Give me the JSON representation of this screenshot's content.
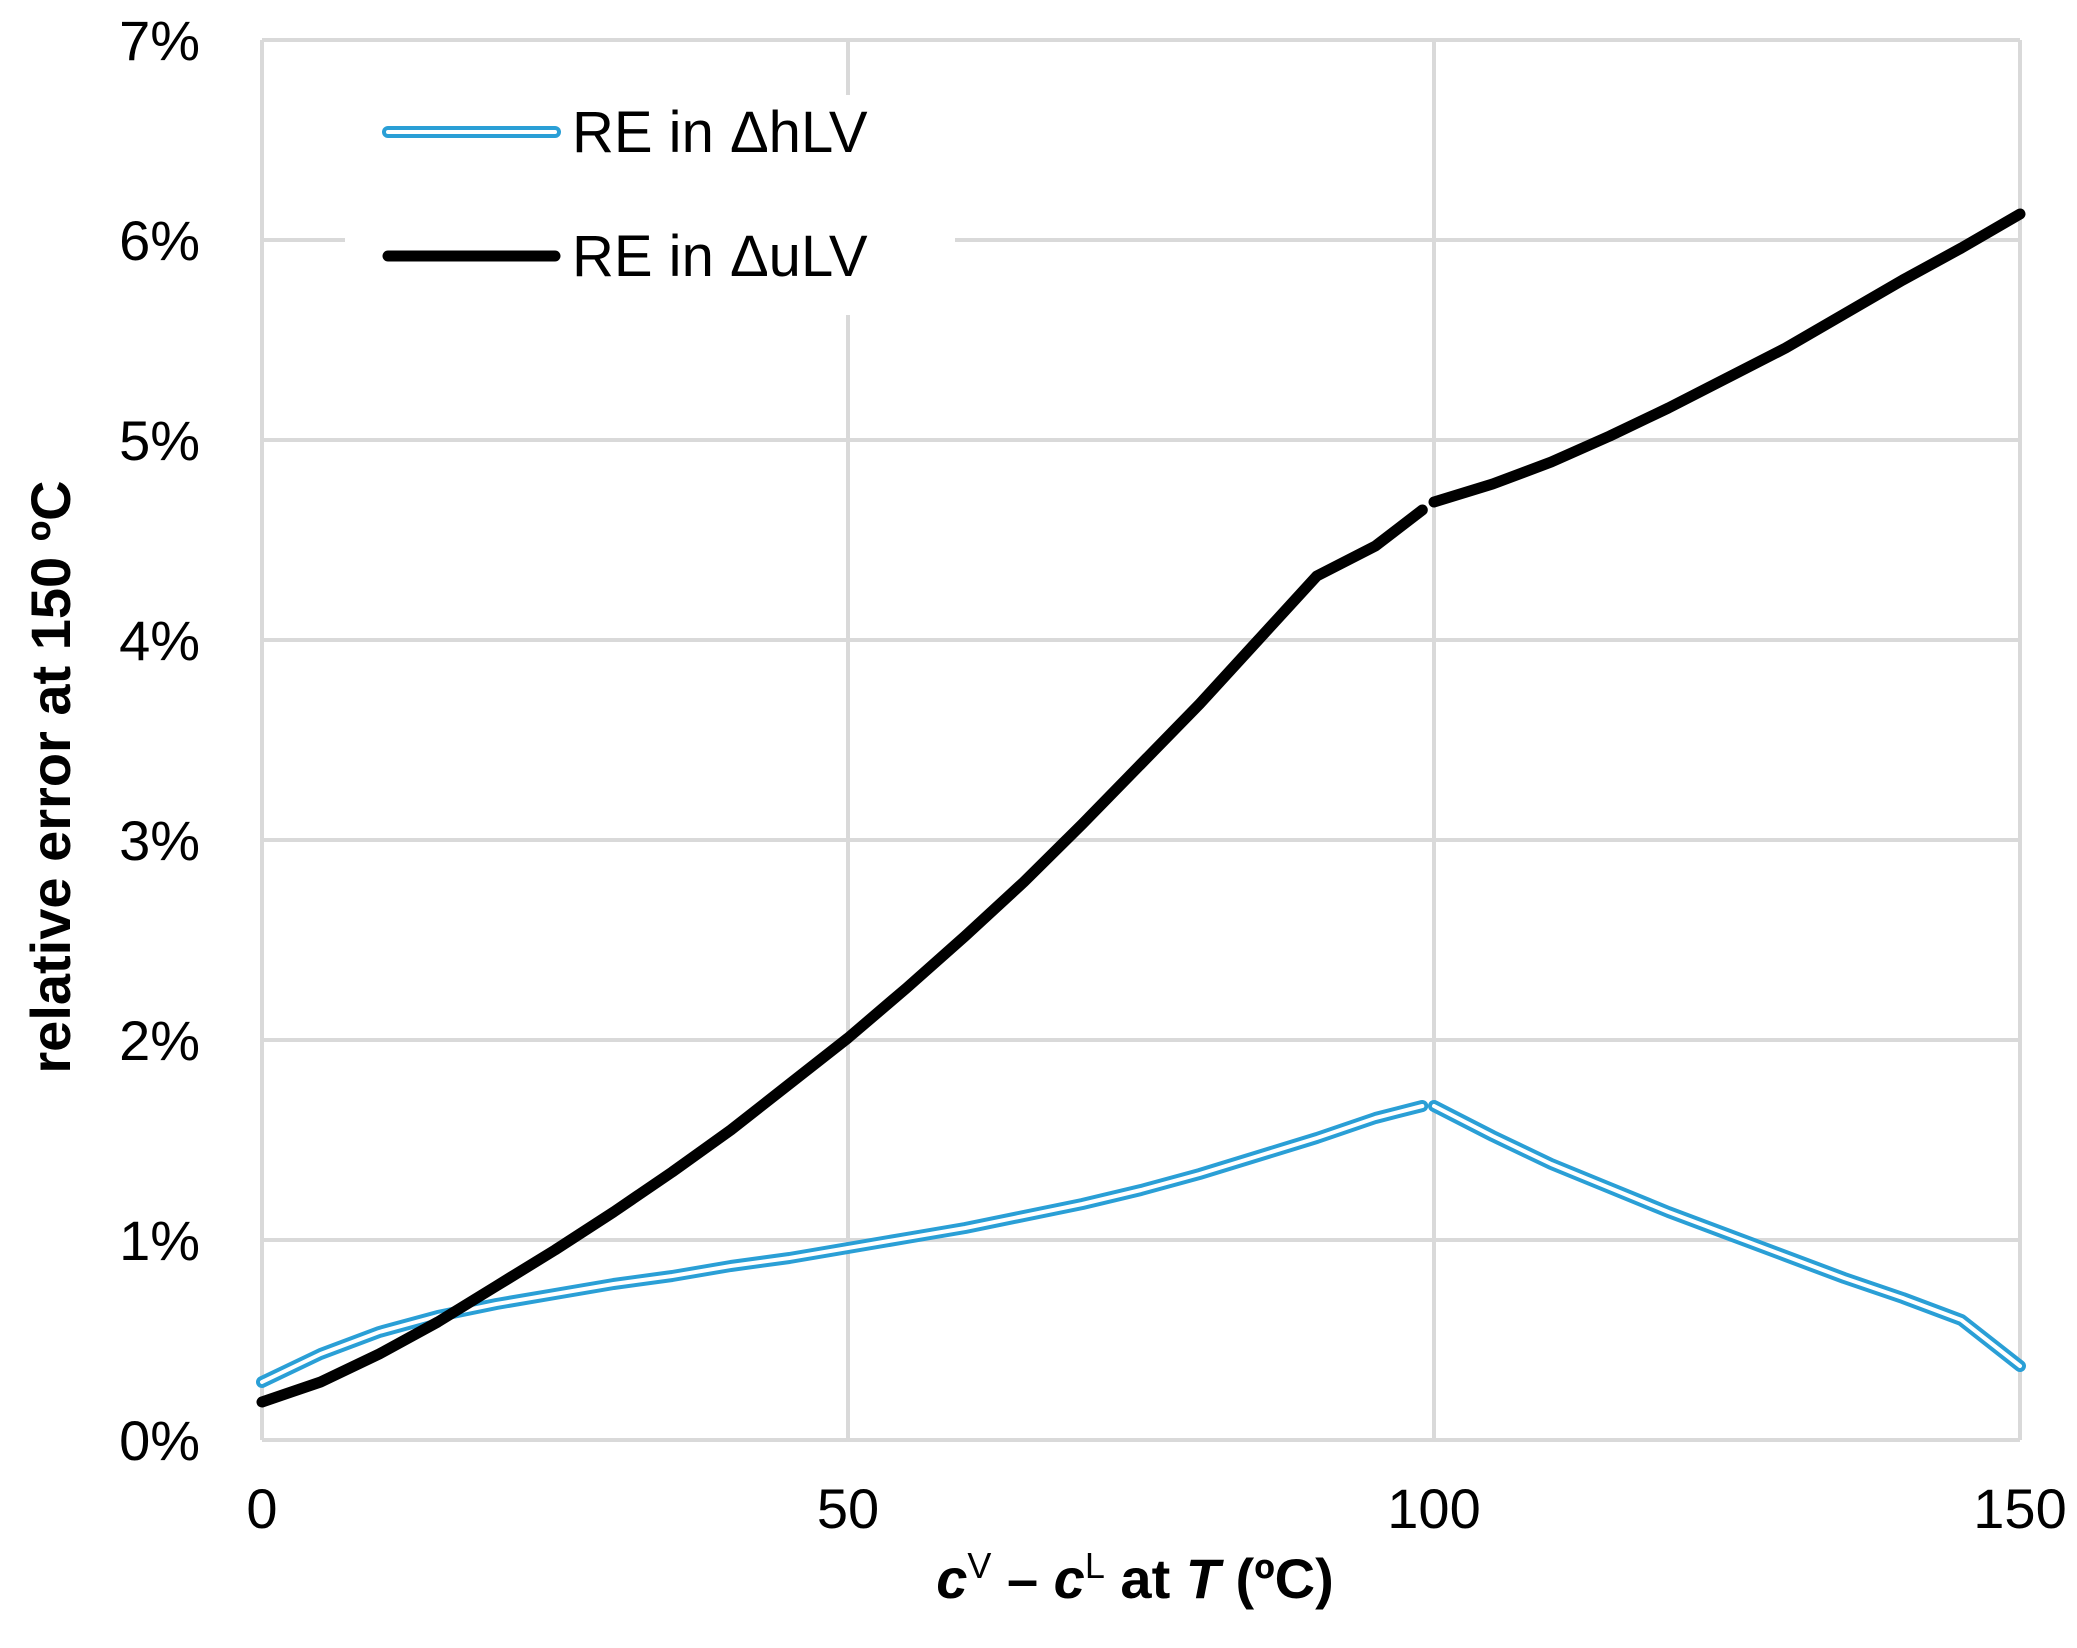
{
  "chart_data": {
    "type": "line",
    "xlabel": {
      "c1": "c",
      "sup1": "V",
      "dash": " – ",
      "c2": "c",
      "sup2": "L",
      "mid": " at ",
      "t": "T",
      "unit": " (ºC)"
    },
    "ylabel": "relative error at 150 ºC",
    "xlim": [
      0,
      150
    ],
    "ylim": [
      0,
      0.07
    ],
    "x_ticks": [
      {
        "value": 0,
        "label": "0"
      },
      {
        "value": 50,
        "label": "50"
      },
      {
        "value": 100,
        "label": "100"
      },
      {
        "value": 150,
        "label": "150"
      }
    ],
    "y_ticks": [
      {
        "value": 0,
        "label": "0%"
      },
      {
        "value": 0.01,
        "label": "1%"
      },
      {
        "value": 0.02,
        "label": "2%"
      },
      {
        "value": 0.03,
        "label": "3%"
      },
      {
        "value": 0.04,
        "label": "4%"
      },
      {
        "value": 0.05,
        "label": "5%"
      },
      {
        "value": 0.06,
        "label": "6%"
      },
      {
        "value": 0.07,
        "label": "7%"
      }
    ],
    "grid": true,
    "legend_position": "top-left",
    "series": [
      {
        "name": "RE in ΔhLV",
        "color": "#2a9fd6",
        "style": "double",
        "segments": [
          [
            [
              0,
              0.0029
            ],
            [
              5,
              0.0043
            ],
            [
              10,
              0.0054
            ],
            [
              15,
              0.0062
            ],
            [
              20,
              0.0068
            ],
            [
              25,
              0.0073
            ],
            [
              30,
              0.0078
            ],
            [
              35,
              0.0082
            ],
            [
              40,
              0.0087
            ],
            [
              45,
              0.0091
            ],
            [
              50,
              0.0096
            ],
            [
              55,
              0.0101
            ],
            [
              60,
              0.0106
            ],
            [
              65,
              0.0112
            ],
            [
              70,
              0.0118
            ],
            [
              75,
              0.0125
            ],
            [
              80,
              0.0133
            ],
            [
              85,
              0.0142
            ],
            [
              90,
              0.0151
            ],
            [
              95,
              0.0161
            ],
            [
              99,
              0.0167
            ]
          ],
          [
            [
              100,
              0.0167
            ],
            [
              105,
              0.0152
            ],
            [
              110,
              0.0138
            ],
            [
              115,
              0.0126
            ],
            [
              120,
              0.0114
            ],
            [
              125,
              0.0103
            ],
            [
              130,
              0.0092
            ],
            [
              135,
              0.0081
            ],
            [
              140,
              0.0071
            ],
            [
              145,
              0.006
            ],
            [
              150,
              0.0037
            ]
          ]
        ]
      },
      {
        "name": "RE in ΔuLV",
        "color": "#000000",
        "style": "solid",
        "segments": [
          [
            [
              0,
              0.0019
            ],
            [
              5,
              0.0029
            ],
            [
              10,
              0.0043
            ],
            [
              15,
              0.0059
            ],
            [
              20,
              0.0077
            ],
            [
              25,
              0.0095
            ],
            [
              30,
              0.0114
            ],
            [
              35,
              0.0134
            ],
            [
              40,
              0.0155
            ],
            [
              45,
              0.0178
            ],
            [
              50,
              0.0201
            ],
            [
              55,
              0.0226
            ],
            [
              60,
              0.0252
            ],
            [
              65,
              0.0279
            ],
            [
              70,
              0.0308
            ],
            [
              75,
              0.0338
            ],
            [
              80,
              0.0368
            ],
            [
              85,
              0.04
            ],
            [
              90,
              0.0432
            ],
            [
              95,
              0.0447
            ],
            [
              99,
              0.0465
            ]
          ],
          [
            [
              100,
              0.0469
            ],
            [
              105,
              0.0478
            ],
            [
              110,
              0.0489
            ],
            [
              115,
              0.0502
            ],
            [
              120,
              0.0516
            ],
            [
              125,
              0.0531
            ],
            [
              130,
              0.0546
            ],
            [
              135,
              0.0563
            ],
            [
              140,
              0.058
            ],
            [
              145,
              0.0596
            ],
            [
              150,
              0.0613
            ]
          ]
        ]
      }
    ]
  }
}
